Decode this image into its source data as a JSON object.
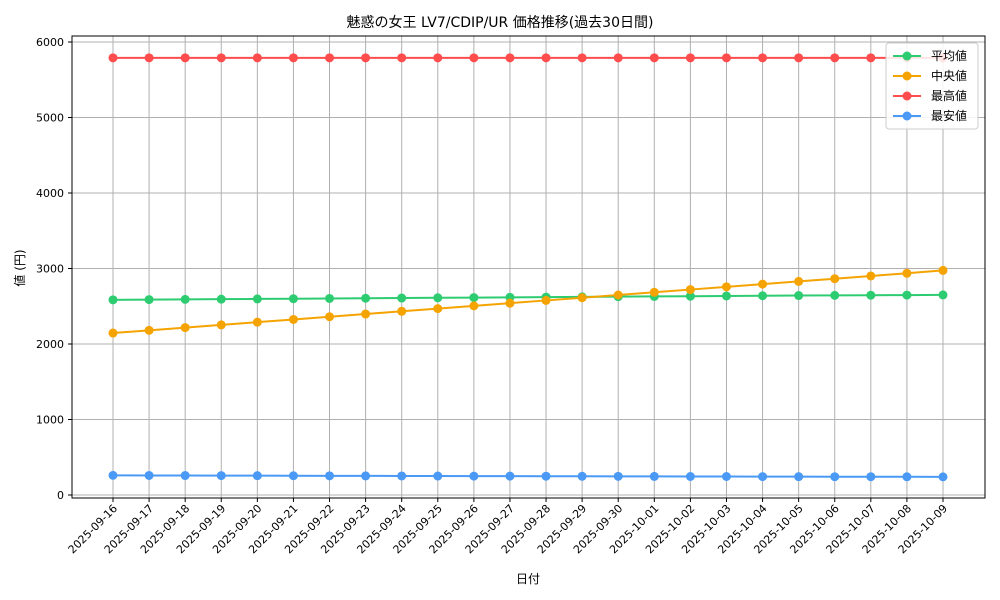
{
  "chart_data": {
    "type": "line",
    "title": "魅惑の女王 LV7/CDIP/UR 価格推移(過去30日間)",
    "xlabel": "日付",
    "ylabel": "値 (円)",
    "ylim": [
      0,
      6000
    ],
    "yticks": [
      0,
      1000,
      2000,
      3000,
      4000,
      5000,
      6000
    ],
    "grid": true,
    "legend_position": "upper right",
    "x": [
      "2025-09-16",
      "2025-09-17",
      "2025-09-18",
      "2025-09-19",
      "2025-09-20",
      "2025-09-21",
      "2025-09-22",
      "2025-09-23",
      "2025-09-24",
      "2025-09-25",
      "2025-09-26",
      "2025-09-27",
      "2025-09-28",
      "2025-09-29",
      "2025-09-30",
      "2025-10-01",
      "2025-10-02",
      "2025-10-03",
      "2025-10-04",
      "2025-10-05",
      "2025-10-06",
      "2025-10-07",
      "2025-10-08",
      "2025-10-09"
    ],
    "series": [
      {
        "name": "平均値",
        "color": "#2ecc71",
        "values": [
          2585,
          2588,
          2591,
          2594,
          2597,
          2600,
          2603,
          2606,
          2609,
          2612,
          2615,
          2618,
          2621,
          2624,
          2627,
          2630,
          2633,
          2636,
          2639,
          2642,
          2644,
          2646,
          2648,
          2650
        ]
      },
      {
        "name": "中央値",
        "color": "#f5a300",
        "values": [
          2145,
          2181,
          2217,
          2253,
          2289,
          2325,
          2361,
          2397,
          2433,
          2469,
          2505,
          2541,
          2577,
          2613,
          2649,
          2685,
          2721,
          2757,
          2793,
          2829,
          2865,
          2901,
          2937,
          2975
        ]
      },
      {
        "name": "最高値",
        "color": "#ff4d4d",
        "values": [
          5790,
          5790,
          5790,
          5790,
          5790,
          5790,
          5790,
          5790,
          5790,
          5790,
          5790,
          5790,
          5790,
          5790,
          5790,
          5790,
          5790,
          5790,
          5790,
          5790,
          5790,
          5790,
          5790,
          5790
        ]
      },
      {
        "name": "最安値",
        "color": "#4a9af5",
        "values": [
          260,
          259,
          258,
          257,
          256,
          255,
          254,
          253,
          252,
          251,
          250,
          250,
          249,
          248,
          247,
          246,
          245,
          245,
          244,
          243,
          242,
          242,
          241,
          240
        ]
      }
    ]
  }
}
